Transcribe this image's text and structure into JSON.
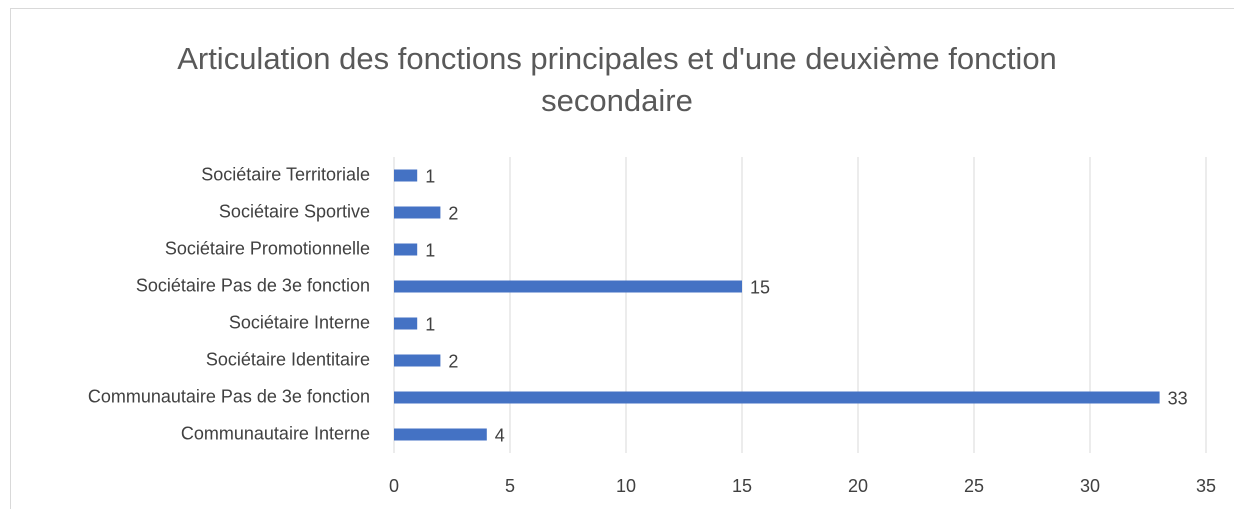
{
  "chart_data": {
    "type": "bar",
    "orientation": "horizontal",
    "title": "Articulation des fonctions principales et d'une deuxième fonction secondaire",
    "categories": [
      "Sociétaire Territoriale",
      "Sociétaire Sportive",
      "Sociétaire Promotionnelle",
      "Sociétaire Pas de 3e fonction",
      "Sociétaire Interne",
      "Sociétaire Identitaire",
      "Communautaire Pas de 3e fonction",
      "Communautaire Interne"
    ],
    "values": [
      1,
      2,
      1,
      15,
      1,
      2,
      33,
      4
    ],
    "color": "#4472c4",
    "xlim": [
      0,
      35
    ],
    "xticks": [
      0,
      5,
      10,
      15,
      20,
      25,
      30,
      35
    ],
    "grid": true,
    "data_labels": true
  }
}
